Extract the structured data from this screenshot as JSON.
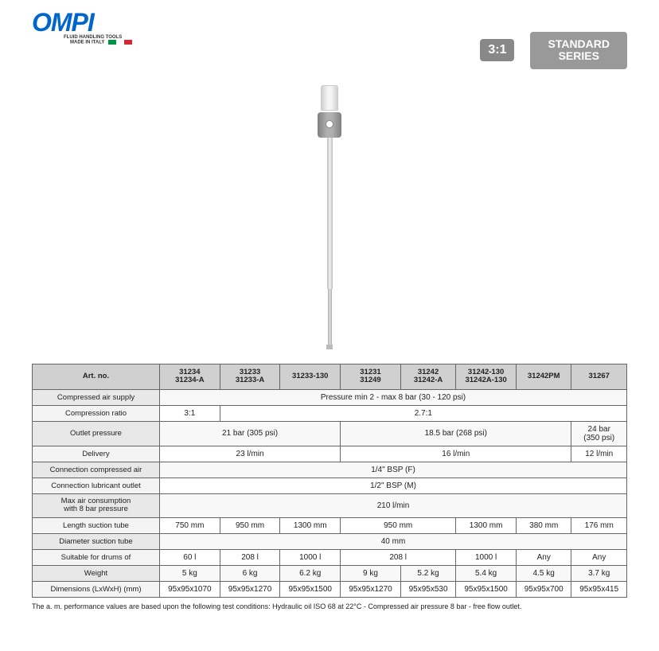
{
  "logo": {
    "text": "OMPI",
    "sub1": "FLUID HANDLING TOOLS",
    "sub2": "MADE IN ITALY"
  },
  "badges": {
    "ratio": "3:1",
    "series_l1": "STANDARD",
    "series_l2": "SERIES"
  },
  "table": {
    "header": {
      "label": "Art. no.",
      "c1": "31234\n31234-A",
      "c2": "31233\n31233-A",
      "c3": "31233-130",
      "c4": "31231\n31249",
      "c5": "31242\n31242-A",
      "c6": "31242-130\n31242A-130",
      "c7": "31242PM",
      "c8": "31267"
    },
    "rows": {
      "r1": {
        "label": "Compressed air supply",
        "v": "Pressure min 2 - max 8 bar (30 - 120 psi)"
      },
      "r2": {
        "label": "Compression ratio",
        "v1": "3:1",
        "v2": "2.7:1"
      },
      "r3": {
        "label": "Outlet pressure",
        "v1": "21 bar (305 psi)",
        "v2": "18.5 bar (268 psi)",
        "v3": "24 bar\n(350 psi)"
      },
      "r4": {
        "label": "Delivery",
        "v1": "23  l/min",
        "v2": "16  l/min",
        "v3": "12  l/min"
      },
      "r5": {
        "label": "Connection compressed air",
        "v": "1/4\" BSP (F)"
      },
      "r6": {
        "label": "Connection lubricant outlet",
        "v": "1/2\" BSP (M)"
      },
      "r7": {
        "label": "Max air consumption\nwith 8 bar pressure",
        "v": "210  l/min"
      },
      "r8": {
        "label": "Length suction tube",
        "c1": "750 mm",
        "c2": "950 mm",
        "c3": "1300 mm",
        "c45": "950 mm",
        "c6": "1300 mm",
        "c7": "380 mm",
        "c8": "176 mm"
      },
      "r9": {
        "label": "Diameter suction tube",
        "v": "40 mm"
      },
      "r10": {
        "label": "Suitable for drums of",
        "c1": "60 l",
        "c2": "208 l",
        "c3": "1000 l",
        "c45": "208 l",
        "c6": "1000 l",
        "c7": "Any",
        "c8": "Any"
      },
      "r11": {
        "label": "Weight",
        "c1": "5 kg",
        "c2": "6 kg",
        "c3": "6.2 kg",
        "c4": "9 kg",
        "c5": "5.2 kg",
        "c6": "5.4 kg",
        "c7": "4.5 kg",
        "c8": "3.7 kg"
      },
      "r12": {
        "label": "Dimensions (LxWxH) (mm)",
        "c1": "95x95x1070",
        "c2": "95x95x1270",
        "c3": "95x95x1500",
        "c4": "95x95x1270",
        "c5": "95x95x530",
        "c6": "95x95x1500",
        "c7": "95x95x700",
        "c8": "95x95x415"
      }
    }
  },
  "footnote": "The a. m. performance values are based upon the following test conditions: Hydraulic oil ISO 68 at 22°C - Compressed air pressure 8 bar - free flow outlet."
}
